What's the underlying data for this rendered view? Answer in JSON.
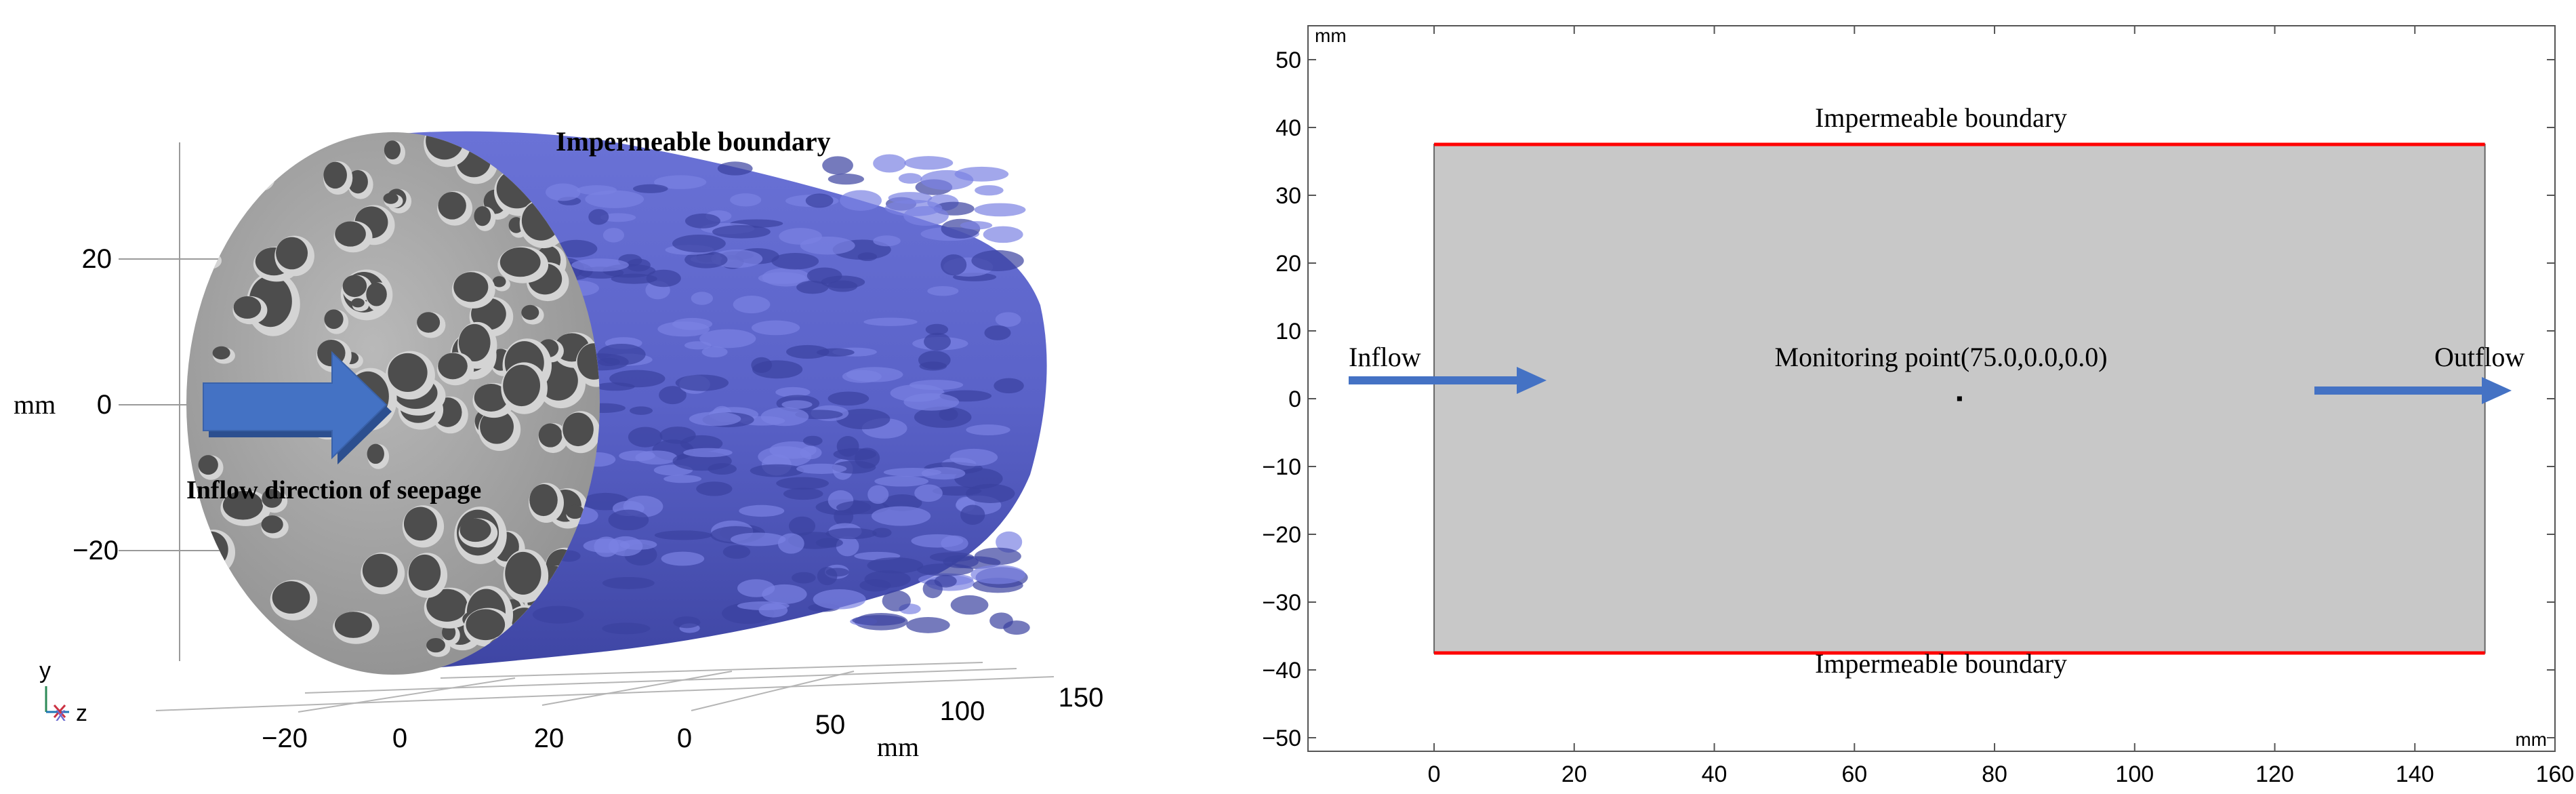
{
  "left_panel": {
    "labels": {
      "impermeable": "Impermeable  boundary",
      "inflow_direction": "Inflow  direction  of seepage"
    },
    "y_axis": {
      "unit": "mm",
      "ticks": [
        "20",
        "0",
        "−20"
      ]
    },
    "horizontal_axes": {
      "x_ticks": [
        "−20",
        "0",
        "20"
      ],
      "z_ticks": [
        "0",
        "50",
        "100",
        "150"
      ],
      "unit": "mm"
    },
    "triad": {
      "y": "y",
      "x": "x",
      "z": "z"
    },
    "colors": {
      "pore_surface": "#a6a6a6",
      "boundary_surface": "#5b63c9",
      "arrow": "#4472c4"
    }
  },
  "right_panel": {
    "labels": {
      "top_boundary": "Impermeable boundary",
      "bottom_boundary": "Impermeable boundary",
      "monitor": "Monitoring point(75.0,0.0,0.0)",
      "inflow": "Inflow",
      "outflow": "Outflow"
    },
    "units": {
      "top_left": "mm",
      "bottom_right": "mm"
    },
    "x_axis": {
      "ticks": [
        0,
        20,
        40,
        60,
        80,
        100,
        120,
        140,
        160
      ],
      "range": [
        -18,
        160
      ]
    },
    "y_axis": {
      "ticks": [
        50,
        40,
        30,
        20,
        10,
        0,
        -10,
        -20,
        -30,
        -40,
        -50
      ],
      "range": [
        -52,
        55
      ]
    },
    "domain": {
      "x": [
        0,
        150
      ],
      "y": [
        -37.5,
        37.5
      ]
    },
    "monitor_point": {
      "x": 75,
      "y": 0
    },
    "colors": {
      "domain_fill": "#c8c8c8",
      "boundary_line": "#ff0000",
      "arrow": "#4472c4",
      "frame": "#555555"
    }
  }
}
